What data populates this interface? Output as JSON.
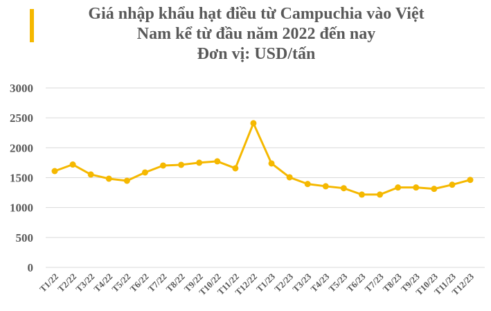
{
  "chart_data": {
    "type": "line",
    "title_lines": [
      "Giá nhập khẩu hạt điều từ Campuchia vào Việt",
      "Nam kể từ đầu năm 2022 đến nay",
      "Đơn vị: USD/tấn"
    ],
    "categories": [
      "T1/22",
      "T2/22",
      "T3/22",
      "T4/22",
      "T5/22",
      "T6/22",
      "T7/22",
      "T8/22",
      "T9/22",
      "T10/22",
      "T11/22",
      "T12/22",
      "T1/23",
      "T2/23",
      "T3/23",
      "T4/23",
      "T5/23",
      "T6/23",
      "T7/23",
      "T8/23",
      "T9/23",
      "T10/23",
      "T11/23",
      "T12/23"
    ],
    "values": [
      1610,
      1720,
      1553,
      1483,
      1448,
      1587,
      1703,
      1715,
      1750,
      1773,
      1657,
      2410,
      1738,
      1506,
      1394,
      1356,
      1324,
      1217,
      1217,
      1336,
      1336,
      1313,
      1382,
      1463
    ],
    "ylim": [
      0,
      3000
    ],
    "yticks": [
      "0",
      "500",
      "1000",
      "1500",
      "2000",
      "2500",
      "3000"
    ],
    "grid": true,
    "legend": "none",
    "line_color": "#f5b800",
    "accent_bar_color": "#f5b800"
  }
}
